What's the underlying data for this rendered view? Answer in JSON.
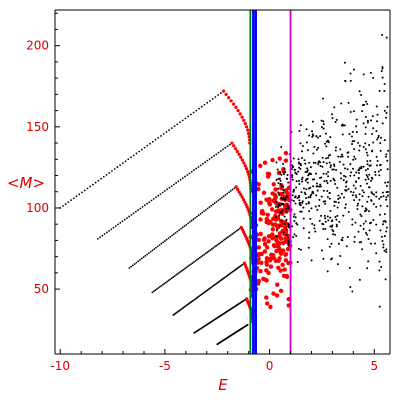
{
  "chart_data": {
    "type": "scatter",
    "title": "",
    "xlabel": "E",
    "ylabel": "<M>",
    "xlim": [
      -10.25,
      5.75
    ],
    "ylim": [
      10,
      222
    ],
    "xticks": [
      -10,
      -5,
      0,
      5
    ],
    "yticks": [
      50,
      100,
      150,
      200
    ],
    "grid": false,
    "vertical_lines": [
      {
        "x": -0.92,
        "color": "#008000"
      },
      {
        "x": -0.78,
        "color": "#0000ff"
      },
      {
        "x": -0.66,
        "color": "#0000ff"
      },
      {
        "x": 1.0,
        "color": "#cc00cc"
      }
    ],
    "series": [
      {
        "kind": "line-dots",
        "color": "#000000",
        "branches": [
          {
            "x": [
              -10.0,
              -2.2
            ],
            "y": [
              100,
              172
            ]
          },
          {
            "x": [
              -8.2,
              -1.8
            ],
            "y": [
              81,
              140
            ]
          },
          {
            "x": [
              -6.7,
              -1.6
            ],
            "y": [
              63,
              113
            ]
          },
          {
            "x": [
              -5.6,
              -1.35
            ],
            "y": [
              48,
              88
            ]
          },
          {
            "x": [
              -4.6,
              -1.2
            ],
            "y": [
              34,
              66
            ]
          },
          {
            "x": [
              -3.6,
              -1.1
            ],
            "y": [
              23,
              44
            ]
          },
          {
            "x": [
              -2.5,
              -1.05
            ],
            "y": [
              16,
              28
            ]
          }
        ]
      },
      {
        "kind": "arcs",
        "color": "#ff0000",
        "branches": [
          {
            "x": [
              -2.2,
              -0.95
            ],
            "y": [
              172,
              140
            ]
          },
          {
            "x": [
              -1.8,
              -0.9
            ],
            "y": [
              140,
              112
            ]
          },
          {
            "x": [
              -1.6,
              -0.85
            ],
            "y": [
              113,
              88
            ]
          },
          {
            "x": [
              -1.35,
              -0.8
            ],
            "y": [
              88,
              66
            ]
          },
          {
            "x": [
              -1.2,
              -0.8
            ],
            "y": [
              66,
              46
            ]
          },
          {
            "x": [
              -1.1,
              -0.8
            ],
            "y": [
              44,
              30
            ]
          }
        ]
      },
      {
        "kind": "cloud",
        "color": "#ff0000",
        "x_range": [
          -0.9,
          1.0
        ],
        "y_range": [
          30,
          150
        ],
        "y_center": 85
      },
      {
        "kind": "cloud",
        "color": "#000000",
        "x_range": [
          0.3,
          5.7
        ],
        "y_range": [
          35,
          222
        ],
        "y_center": 105
      }
    ]
  }
}
